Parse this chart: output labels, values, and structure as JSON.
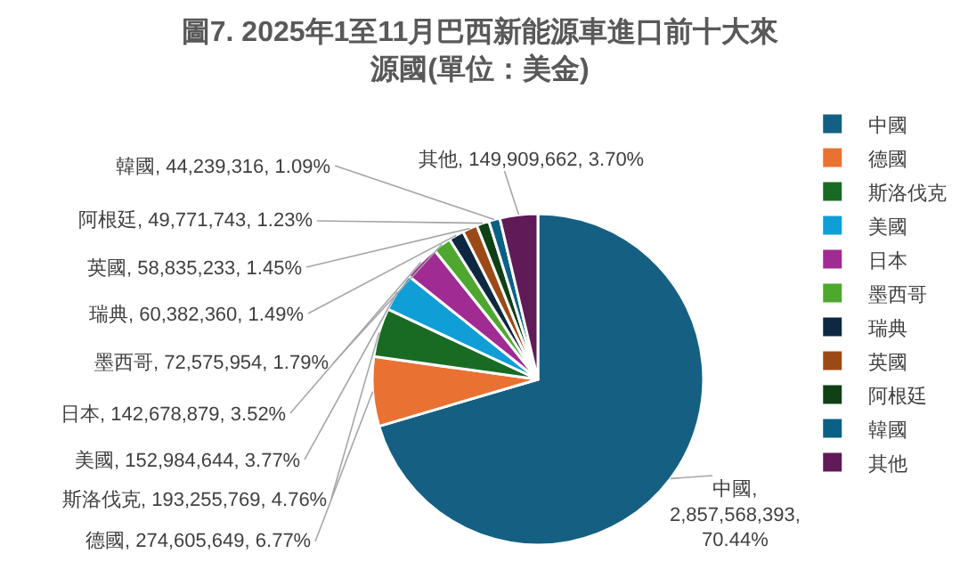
{
  "chart_data": {
    "type": "pie",
    "title": "圖7. 2025年1至11月巴西新能源車進口前十大來源國(單位：美金)",
    "categories": [
      "中國",
      "德國",
      "斯洛伐克",
      "美國",
      "日本",
      "墨西哥",
      "瑞典",
      "英國",
      "阿根廷",
      "韓國",
      "其他"
    ],
    "values": [
      2857568393,
      274605649,
      193255769,
      152984644,
      142678879,
      72575954,
      60382360,
      58835233,
      49771743,
      44239316,
      149909662
    ],
    "colors": [
      "#156082",
      "#e97132",
      "#196b24",
      "#0f9ed5",
      "#a02b93",
      "#4ea72e",
      "#0e2841",
      "#9b4a17",
      "#0f4016",
      "#0b6086",
      "#5f1a57"
    ],
    "value_labels": [
      "中國, 2,857,568,393, 70.44%",
      "德國, 274,605,649, 6.77%",
      "斯洛伐克, 193,255,769, 4.76%",
      "美國, 152,984,644, 3.77%",
      "日本, 142,678,879, 3.52%",
      "墨西哥, 72,575,954, 1.79%",
      "瑞典, 60,382,360, 1.49%",
      "英國, 58,835,233, 1.45%",
      "阿根廷, 49,771,743, 1.23%",
      "韓國, 44,239,316, 1.09%",
      "其他, 149,909,662, 3.70%"
    ],
    "legend": "right"
  }
}
